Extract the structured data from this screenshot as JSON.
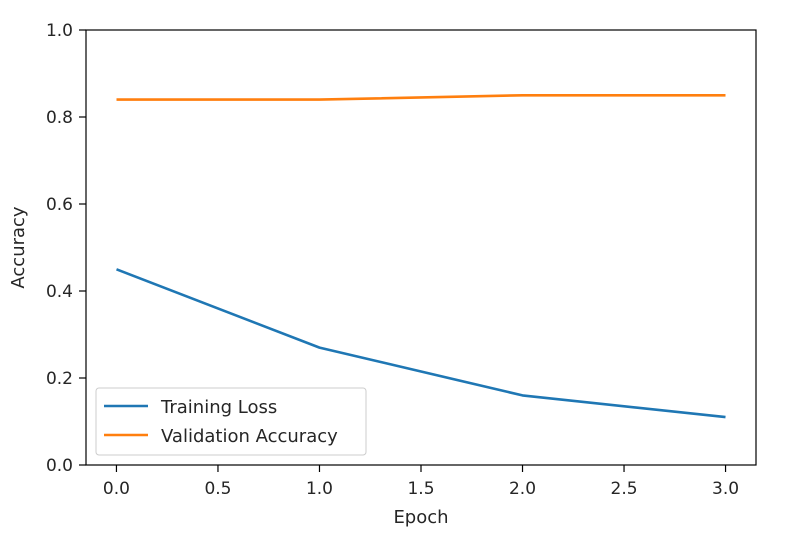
{
  "chart_data": {
    "type": "line",
    "title": "",
    "xlabel": "Epoch",
    "ylabel": "Accuracy",
    "xlim": [
      -0.15,
      3.15
    ],
    "ylim": [
      0.0,
      1.0
    ],
    "x_ticks": [
      0.0,
      0.5,
      1.0,
      1.5,
      2.0,
      2.5,
      3.0
    ],
    "x_tick_labels": [
      "0.0",
      "0.5",
      "1.0",
      "1.5",
      "2.0",
      "2.5",
      "3.0"
    ],
    "y_ticks": [
      0.0,
      0.2,
      0.4,
      0.6,
      0.8,
      1.0
    ],
    "y_tick_labels": [
      "0.0",
      "0.2",
      "0.4",
      "0.6",
      "0.8",
      "1.0"
    ],
    "grid": false,
    "legend_position": "lower-left",
    "x": [
      0,
      1,
      2,
      3
    ],
    "series": [
      {
        "name": "Training Loss",
        "color": "#1f77b4",
        "values": [
          0.45,
          0.27,
          0.16,
          0.11
        ]
      },
      {
        "name": "Validation Accuracy",
        "color": "#ff7f0e",
        "values": [
          0.84,
          0.84,
          0.85,
          0.85
        ]
      }
    ]
  }
}
